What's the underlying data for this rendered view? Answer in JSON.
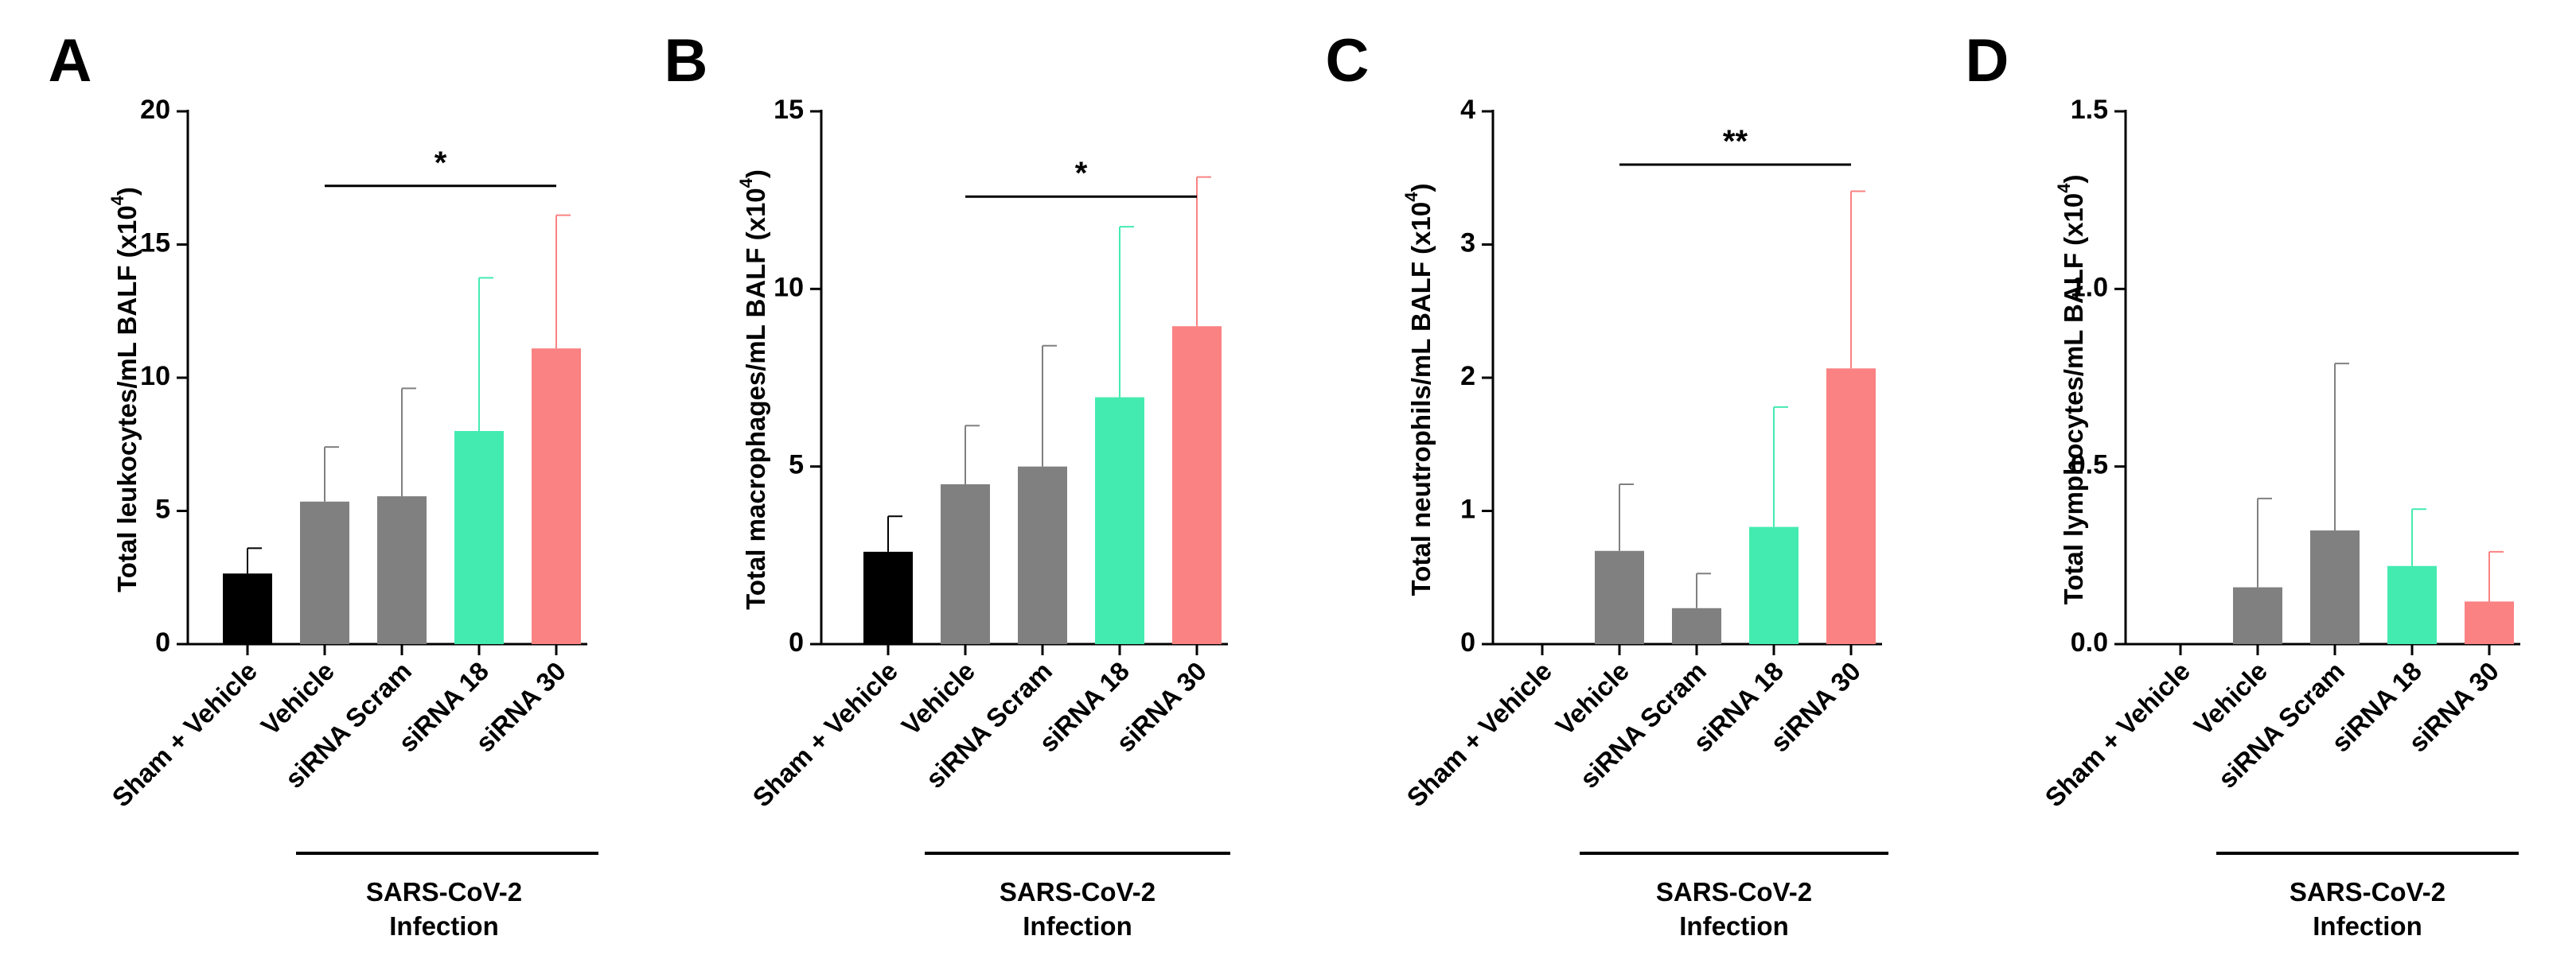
{
  "colors": {
    "sham": "#000000",
    "vehicle": "#808080",
    "scram": "#808080",
    "sirna18": "#44EBB0",
    "sirna30": "#FA8282",
    "axis": "#000000"
  },
  "chart_data": [
    {
      "type": "bar",
      "panel": "A",
      "ylabel": "Total leukocytes/mL BALF (x10",
      "ylabel_sup": "4",
      "ylabel_close": ")",
      "ylim": [
        0,
        20
      ],
      "yticks": [
        0,
        5,
        10,
        15,
        20
      ],
      "ytick_labels": [
        "0",
        "5",
        "10",
        "15",
        "20"
      ],
      "categories": [
        "Sham + Vehicle",
        "Vehicle",
        "siRNA Scram",
        "siRNA 18",
        "siRNA 30"
      ],
      "values": [
        2.65,
        5.35,
        5.55,
        8.0,
        11.1
      ],
      "errors": [
        0.95,
        2.05,
        4.05,
        5.75,
        5.0
      ],
      "significance": {
        "label": "*",
        "from": 1,
        "to": 4,
        "y": 17.2
      },
      "group_label": [
        "SARS-CoV-2",
        "Infection"
      ]
    },
    {
      "type": "bar",
      "panel": "B",
      "ylabel": "Total macrophages/mL BALF (x10",
      "ylabel_sup": "4",
      "ylabel_close": ")",
      "ylim": [
        0,
        15
      ],
      "yticks": [
        0,
        5,
        10,
        15
      ],
      "ytick_labels": [
        "0",
        "5",
        "10",
        "15"
      ],
      "categories": [
        "Sham + Vehicle",
        "Vehicle",
        "siRNA Scram",
        "siRNA 18",
        "siRNA 30"
      ],
      "values": [
        2.6,
        4.5,
        5.0,
        6.95,
        8.95
      ],
      "errors": [
        1.0,
        1.65,
        3.4,
        4.8,
        4.2
      ],
      "significance": {
        "label": "*",
        "from": 1,
        "to": 4,
        "y": 12.6
      },
      "group_label": [
        "SARS-CoV-2",
        "Infection"
      ]
    },
    {
      "type": "bar",
      "panel": "C",
      "ylabel": "Total neutrophils/mL BALF (x10",
      "ylabel_sup": "4",
      "ylabel_close": ")",
      "ylim": [
        0,
        4
      ],
      "yticks": [
        0,
        1,
        2,
        3,
        4
      ],
      "ytick_labels": [
        "0",
        "1",
        "2",
        "3",
        "4"
      ],
      "categories": [
        "Sham + Vehicle",
        "Vehicle",
        "siRNA Scram",
        "siRNA 18",
        "siRNA 30"
      ],
      "values": [
        0,
        0.7,
        0.27,
        0.88,
        2.07
      ],
      "errors": [
        0,
        0.5,
        0.26,
        0.9,
        1.33
      ],
      "significance": {
        "label": "**",
        "from": 1,
        "to": 4,
        "y": 3.6
      },
      "group_label": [
        "SARS-CoV-2",
        "Infection"
      ]
    },
    {
      "type": "bar",
      "panel": "D",
      "ylabel": "Total lymphocytes/mL BALF (x10",
      "ylabel_sup": "4",
      "ylabel_close": ")",
      "ylim": [
        0,
        1.5
      ],
      "yticks": [
        0,
        0.5,
        1.0,
        1.5
      ],
      "ytick_labels": [
        "0.0",
        "0.5",
        "1.0",
        "1.5"
      ],
      "categories": [
        "Sham + Vehicle",
        "Vehicle",
        "siRNA Scram",
        "siRNA 18",
        "siRNA 30"
      ],
      "values": [
        0,
        0.16,
        0.32,
        0.22,
        0.12
      ],
      "errors": [
        0,
        0.25,
        0.47,
        0.16,
        0.14
      ],
      "significance": null,
      "group_label": [
        "SARS-CoV-2",
        "Infection"
      ]
    }
  ]
}
